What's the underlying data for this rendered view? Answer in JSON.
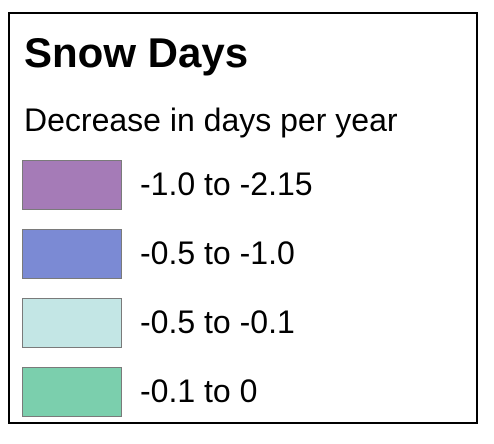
{
  "legend": {
    "title": "Snow Days",
    "subtitle": "Decrease in days per year",
    "items": [
      {
        "label": "-1.0 to -2.15",
        "color": "#a57bb7"
      },
      {
        "label": "-0.5 to -1.0",
        "color": "#7b8ad4"
      },
      {
        "label": "-0.5 to -0.1",
        "color": "#c3e6e5"
      },
      {
        "label": "-0.1 to 0",
        "color": "#7bcfad"
      }
    ]
  }
}
